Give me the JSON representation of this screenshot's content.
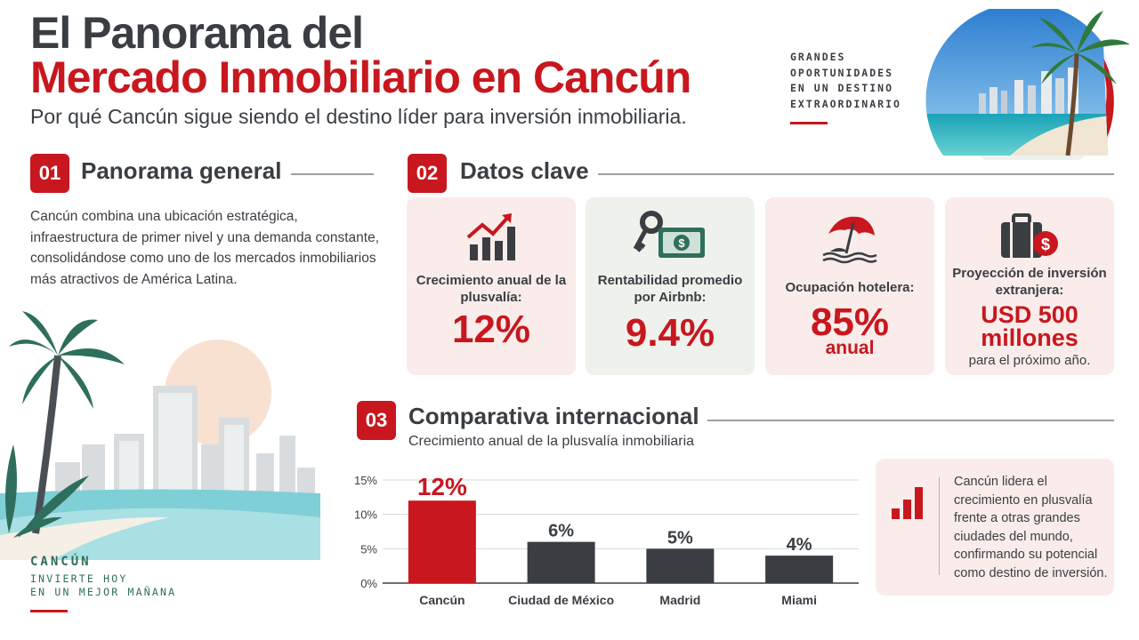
{
  "header": {
    "title_line1": "El Panorama del",
    "title_line2": "Mercado Inmobiliario en Cancún",
    "subtitle": "Por qué Cancún sigue siendo el destino líder para inversión inmobiliaria.",
    "tagline": [
      "GRANDES",
      "OPORTUNIDADES",
      "EN UN DESTINO",
      "EXTRAORDINARIO"
    ]
  },
  "section1": {
    "number": "01",
    "title": "Panorama general",
    "text": "Cancún combina una ubicación estratégica, infraestructura de primer nivel y una demanda constante, consolidándose como uno de los mercados inmobiliarios más atractivos de América Latina."
  },
  "section2": {
    "number": "02",
    "title": "Datos clave",
    "cards": [
      {
        "icon": "growth-chart-icon",
        "label": "Crecimiento anual de la plusvalía:",
        "value": "12%"
      },
      {
        "icon": "key-money-icon",
        "label": "Rentabilidad promedio por Airbnb:",
        "value": "9.4%"
      },
      {
        "icon": "beach-umbrella-icon",
        "label": "Ocupación hotelera:",
        "value": "85%",
        "unit": "anual"
      },
      {
        "icon": "briefcase-dollar-icon",
        "label": "Proyección de inversión extranjera:",
        "value_line1": "USD 500",
        "value_line2": "millones",
        "note": "para el próximo año."
      }
    ]
  },
  "section3": {
    "number": "03",
    "title": "Comparativa internacional",
    "subtitle": "Crecimiento anual de la plusvalía inmobiliaria",
    "note": "Cancún lidera el crecimiento en plusvalía frente a otras grandes ciudades del mundo, confirmando su potencial como destino de inversión."
  },
  "chart_data": {
    "type": "bar",
    "categories": [
      "Cancún",
      "Ciudad de México",
      "Madrid",
      "Miami"
    ],
    "values": [
      12,
      6,
      5,
      4
    ],
    "data_labels": [
      "12%",
      "6%",
      "5%",
      "4%"
    ],
    "ylim": [
      0,
      15
    ],
    "yticks": [
      "0%",
      "5%",
      "10%",
      "15%"
    ],
    "ytick_values": [
      0,
      5,
      10,
      15
    ],
    "grid": true,
    "colors": [
      "#c8171e",
      "#3a3e43",
      "#3a3e43",
      "#3a3e43"
    ]
  },
  "footer": {
    "brand": "CANCÚN",
    "slogan_line1": "INVIERTE HOY",
    "slogan_line2": "EN UN MEJOR MAÑANA"
  },
  "colors": {
    "accent": "#c8171e",
    "dark": "#3a3e43",
    "pink_card": "#f9ecea",
    "green_card": "#eef1ec",
    "brand_green": "#2e6e5c"
  }
}
